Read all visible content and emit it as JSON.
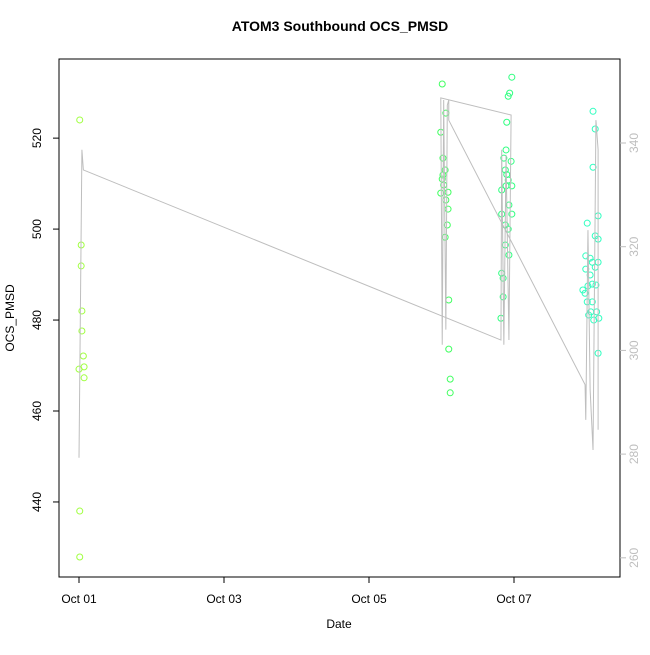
{
  "chart_data": {
    "type": "scatter",
    "title": "ATOM3 Southbound OCS_PMSD",
    "xlabel": "Date",
    "ylabel": "OCS_PMSD",
    "xlim": [
      -0.276,
      7.462
    ],
    "xticks": [
      {
        "value": 0,
        "label": "Oct 01"
      },
      {
        "value": 2,
        "label": "Oct 03"
      },
      {
        "value": 4,
        "label": "Oct 05"
      },
      {
        "value": 6,
        "label": "Oct 07"
      }
    ],
    "ylim": [
      423.5,
      537.4
    ],
    "yticks": [
      440,
      460,
      480,
      500,
      520
    ],
    "y2lim": [
      256.3,
      356.2
    ],
    "y2ticks": [
      260,
      280,
      300,
      320,
      340
    ],
    "y2color": "#bebebe",
    "series": [
      {
        "x": [
          0.01,
          0.03,
          0.03,
          0.04,
          0.04,
          0.06,
          0,
          0.07,
          0.07,
          0.01,
          0.01,
          5.01,
          4.99,
          5.02,
          5.06,
          5.02,
          5.05,
          4.99,
          5.03,
          5.06,
          5.09,
          5.09,
          5.08,
          5.05,
          5.1,
          5.1,
          5.12,
          5.12,
          5.01,
          5.97,
          5.94,
          5.92,
          5.9,
          5.89,
          5.86,
          5.96,
          5.88,
          5.9,
          5.92,
          5.89,
          5.97,
          5.93,
          5.97,
          5.83,
          5.88,
          5.92,
          5.88,
          5.93,
          5.83,
          5.83,
          5.85,
          5.85,
          5.82,
          7.09,
          7.12,
          7.09,
          7.01,
          7.16,
          7.12,
          7.16,
          6.99,
          7.05,
          7.08,
          7.16,
          7.12,
          6.99,
          7.05,
          6.95,
          6.98,
          7.02,
          7.08,
          7.13,
          7.01,
          7.08,
          7.06,
          7.14,
          7.03,
          7.1,
          7.16,
          7.17
        ],
        "values": [
          524.0,
          496.5,
          491.9,
          482.0,
          477.6,
          472.1,
          469.2,
          469.7,
          467.3,
          438.0,
          427.9,
          531.9,
          521.3,
          515.6,
          525.5,
          511.9,
          513.0,
          507.9,
          509.7,
          506.4,
          508.1,
          504.4,
          500.9,
          498.2,
          484.4,
          473.6,
          467.0,
          464.0,
          511.0,
          533.4,
          529.9,
          529.2,
          523.5,
          517.4,
          515.6,
          514.9,
          513.0,
          512.0,
          510.8,
          509.5,
          509.5,
          505.3,
          503.3,
          503.3,
          500.9,
          500.0,
          496.5,
          494.3,
          508.6,
          490.3,
          489.2,
          485.1,
          480.4,
          525.9,
          522.0,
          513.6,
          501.3,
          502.9,
          498.5,
          497.8,
          494.1,
          493.6,
          492.7,
          492.7,
          491.6,
          491.2,
          489.9,
          486.6,
          485.9,
          487.5,
          487.9,
          487.7,
          484.0,
          484.0,
          481.8,
          481.8,
          481.1,
          480.0,
          472.7,
          480.4
        ],
        "colors": [
          "#a0ff40",
          "#a0ff40",
          "#a0ff40",
          "#a0ff40",
          "#a0ff40",
          "#a0ff40",
          "#a0ff40",
          "#a0ff40",
          "#a0ff40",
          "#a0ff40",
          "#a0ff40",
          "#40ff60",
          "#40ff60",
          "#40ff60",
          "#40ff60",
          "#40ff60",
          "#40ff60",
          "#40ff60",
          "#40ff60",
          "#40ff60",
          "#40ff60",
          "#40ff60",
          "#40ff60",
          "#40ff60",
          "#40ff60",
          "#40ff60",
          "#40ff60",
          "#40ff60",
          "#40ff60",
          "#30ff80",
          "#30ff80",
          "#30ff80",
          "#30ff80",
          "#30ff80",
          "#30ff80",
          "#30ff80",
          "#30ff80",
          "#30ff80",
          "#30ff80",
          "#30ff80",
          "#30ff80",
          "#30ff80",
          "#30ff80",
          "#30ff80",
          "#30ff80",
          "#30ff80",
          "#30ff80",
          "#30ff80",
          "#30ff80",
          "#30ff80",
          "#30ff80",
          "#30ff80",
          "#30ff80",
          "#30ffc0",
          "#30ffc0",
          "#30ffc0",
          "#30ffc0",
          "#30ffc0",
          "#30ffc0",
          "#30ffc0",
          "#30ffc0",
          "#30ffc0",
          "#30ffc0",
          "#30ffc0",
          "#30ffc0",
          "#30ffc0",
          "#30ffc0",
          "#30ffc0",
          "#30ffc0",
          "#30ffc0",
          "#30ffc0",
          "#30ffc0",
          "#30ffc0",
          "#30ffc0",
          "#30ffc0",
          "#30ffc0",
          "#30ffc0",
          "#30ffc0",
          "#30ffc0",
          "#30ffc0"
        ]
      },
      {
        "type": "line",
        "axis": "y2",
        "color": "#bebebe",
        "x": [
          0,
          0.04,
          0.06,
          5.82,
          5.83,
          5.86,
          5.89,
          5.93,
          5.96,
          4.99,
          5.01,
          5.03,
          5.06,
          5.08,
          5.1,
          5.1,
          6.98,
          6.99,
          7.02,
          7.05,
          7.09,
          7.13,
          7.16,
          7.16
        ],
        "values": [
          279.3,
          338.7,
          334.8,
          302.0,
          338.7,
          301.1,
          337.7,
          302.0,
          345.4,
          348.7,
          301.1,
          348.3,
          304.0,
          347.3,
          348.3,
          344.4,
          293.4,
          286.6,
          323.2,
          292.4,
          280.8,
          344.4,
          338.7,
          284.7
        ]
      }
    ]
  }
}
